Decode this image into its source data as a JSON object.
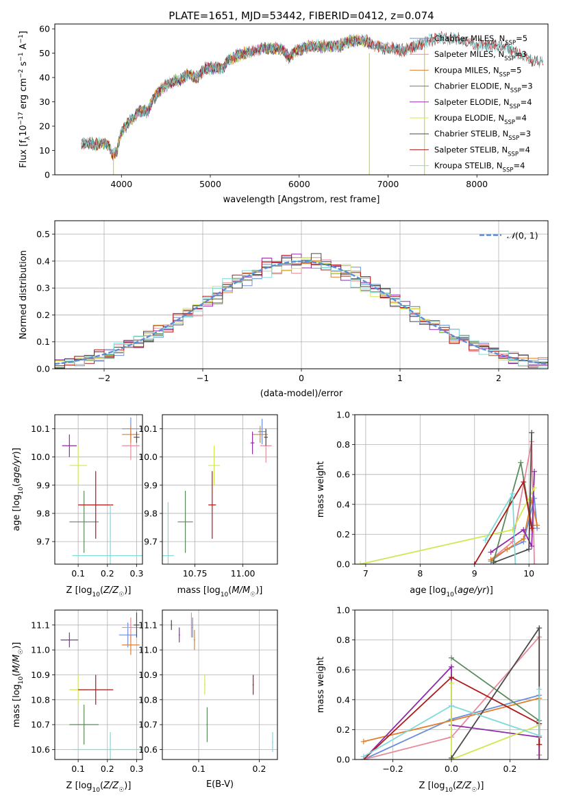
{
  "colors": {
    "Chabrier MILES": "#6a8fd9",
    "Salpeter MILES": "#e88a9a",
    "Kroupa MILES": "#e07e2c",
    "Chabrier ELODIE": "#5a8a5a",
    "Salpeter ELODIE": "#8e2aa8",
    "Kroupa ELODIE": "#cfe850",
    "Chabrier STELIB": "#4a4a4a",
    "Salpeter STELIB": "#b01818",
    "Kroupa STELIB": "#7fdada",
    "gaussian": "#5b8dd6"
  },
  "chart_data": [
    {
      "type": "line",
      "title": "PLATE=1651, MJD=53442, FIBERID=0412, z=0.074",
      "xlabel": "wavelength [Angstrom, rest frame]",
      "ylabel": "Flux [fλ10⁻¹⁷ erg cm⁻² s⁻¹ A⁻¹]",
      "xlim": [
        3250,
        8800
      ],
      "ylim": [
        0,
        62
      ],
      "xticks": [
        4000,
        5000,
        6000,
        7000,
        8000
      ],
      "yticks": [
        0,
        10,
        20,
        30,
        40,
        50,
        60
      ],
      "legend_position": "right",
      "series": [
        {
          "name": "Chabrier MILES, N_SSP=5",
          "label_main": "Chabrier MILES, N",
          "label_sub": "SSP",
          "label_tail": "=5",
          "key": "Chabrier MILES",
          "xmax": 7400
        },
        {
          "name": "Salpeter MILES, N_SSP=3",
          "label_main": "Salpeter MILES, N",
          "label_sub": "SSP",
          "label_tail": "=3",
          "key": "Salpeter MILES",
          "xmax": 7400
        },
        {
          "name": "Kroupa MILES, N_SSP=5",
          "label_main": "Kroupa MILES, N",
          "label_sub": "SSP",
          "label_tail": "=5",
          "key": "Kroupa MILES",
          "xmax": 7400
        },
        {
          "name": "Chabrier ELODIE, N_SSP=3",
          "label_main": "Chabrier ELODIE, N",
          "label_sub": "SSP",
          "label_tail": "=3",
          "key": "Chabrier ELODIE",
          "xmax": 6800
        },
        {
          "name": "Salpeter ELODIE, N_SSP=4",
          "label_main": "Salpeter ELODIE, N",
          "label_sub": "SSP",
          "label_tail": "=4",
          "key": "Salpeter ELODIE",
          "xmax": 6800
        },
        {
          "name": "Kroupa ELODIE, N_SSP=4",
          "label_main": "Kroupa ELODIE, N",
          "label_sub": "SSP",
          "label_tail": "=4",
          "key": "Kroupa ELODIE",
          "xmax": 6800
        },
        {
          "name": "Chabrier STELIB, N_SSP=3",
          "label_main": "Chabrier STELIB, N",
          "label_sub": "SSP",
          "label_tail": "=3",
          "key": "Chabrier STELIB",
          "xmax": 8750
        },
        {
          "name": "Salpeter STELIB, N_SSP=4",
          "label_main": "Salpeter STELIB, N",
          "label_sub": "SSP",
          "label_tail": "=4",
          "key": "Salpeter STELIB",
          "xmax": 8750
        },
        {
          "name": "Kroupa STELIB, N_SSP=4",
          "label_main": "Kroupa STELIB, N",
          "label_sub": "SSP",
          "label_tail": "=4",
          "key": "Kroupa STELIB",
          "xmax": 8750
        }
      ],
      "continuum": [
        [
          3550,
          13
        ],
        [
          3650,
          13
        ],
        [
          3700,
          12
        ],
        [
          3750,
          13
        ],
        [
          3800,
          13
        ],
        [
          3860,
          12
        ],
        [
          3900,
          8
        ],
        [
          3950,
          10
        ],
        [
          4000,
          18
        ],
        [
          4100,
          22
        ],
        [
          4200,
          26
        ],
        [
          4300,
          26
        ],
        [
          4350,
          31
        ],
        [
          4450,
          35
        ],
        [
          4550,
          38
        ],
        [
          4650,
          39
        ],
        [
          4750,
          41
        ],
        [
          4850,
          40
        ],
        [
          4950,
          44
        ],
        [
          5050,
          44
        ],
        [
          5150,
          44
        ],
        [
          5200,
          47
        ],
        [
          5300,
          49
        ],
        [
          5400,
          50
        ],
        [
          5500,
          51
        ],
        [
          5600,
          52
        ],
        [
          5700,
          52
        ],
        [
          5800,
          52
        ],
        [
          5890,
          48
        ],
        [
          5950,
          51
        ],
        [
          6050,
          52
        ],
        [
          6150,
          53
        ],
        [
          6250,
          53
        ],
        [
          6350,
          53
        ],
        [
          6450,
          53
        ],
        [
          6563,
          55
        ],
        [
          6650,
          55
        ],
        [
          6750,
          55
        ],
        [
          6850,
          53
        ],
        [
          6950,
          52
        ],
        [
          7050,
          52
        ],
        [
          7150,
          51
        ],
        [
          7250,
          52
        ],
        [
          7350,
          53
        ],
        [
          7450,
          55
        ],
        [
          7550,
          56
        ],
        [
          7650,
          56
        ],
        [
          7750,
          56
        ],
        [
          7850,
          55
        ],
        [
          7950,
          54
        ],
        [
          8050,
          53
        ],
        [
          8150,
          53
        ],
        [
          8250,
          53
        ],
        [
          8350,
          52
        ],
        [
          8450,
          50
        ],
        [
          8550,
          48
        ],
        [
          8650,
          47
        ],
        [
          8750,
          46
        ]
      ],
      "artifacts": [
        {
          "x": 3910,
          "y0": 0,
          "y1": 11
        },
        {
          "x": 6790,
          "y0": 0,
          "y1": 50
        },
        {
          "x": 7410,
          "y0": 0,
          "y1": 52
        }
      ]
    },
    {
      "type": "bar",
      "xlabel": "(data-model)/error",
      "ylabel": "Normed distribution",
      "xlim": [
        -2.5,
        2.5
      ],
      "ylim": [
        0,
        0.55
      ],
      "xticks": [
        -2,
        -1,
        0,
        1,
        2
      ],
      "xtick_labels": [
        "−2",
        "−1",
        "0",
        "1",
        "2"
      ],
      "yticks": [
        0.0,
        0.1,
        0.2,
        0.3,
        0.4,
        0.5
      ],
      "grid": true,
      "bin_width": 0.1,
      "reference": {
        "name": "𝒩(0, 1)",
        "label_main": "𝒩",
        "label_tail": "(0, 1)",
        "mu": 0,
        "sigma": 1,
        "legend_position": "top-right"
      },
      "series_keys": [
        "Chabrier MILES",
        "Salpeter MILES",
        "Kroupa MILES",
        "Chabrier ELODIE",
        "Salpeter ELODIE",
        "Kroupa ELODIE",
        "Chabrier STELIB",
        "Salpeter STELIB",
        "Kroupa STELIB"
      ],
      "noise_amplitude": 0.045
    },
    {
      "type": "scatter",
      "id": "age_vs_Z",
      "xlabel": "Z [log10(Z/Z☉)]",
      "ylabel": "age [log10(age/yr)]",
      "xlim": [
        0.02,
        0.32
      ],
      "ylim": [
        9.62,
        10.15
      ],
      "xticks": [
        0.1,
        0.2,
        0.3
      ],
      "yticks": [
        9.7,
        9.8,
        9.9,
        10.0,
        10.1
      ],
      "points": [
        {
          "key": "Chabrier MILES",
          "x": 0.28,
          "y": 10.1,
          "xerr": 0.03,
          "yerr": 0.04
        },
        {
          "key": "Salpeter MILES",
          "x": 0.28,
          "y": 10.04,
          "xerr": 0.03,
          "yerr": 0.05
        },
        {
          "key": "Kroupa MILES",
          "x": 0.28,
          "y": 10.08,
          "xerr": 0.03,
          "yerr": 0.03
        },
        {
          "key": "Chabrier ELODIE",
          "x": 0.12,
          "y": 9.77,
          "xerr": 0.05,
          "yerr": 0.11
        },
        {
          "key": "Salpeter ELODIE",
          "x": 0.07,
          "y": 10.04,
          "xerr": 0.025,
          "yerr": 0.04
        },
        {
          "key": "Kroupa ELODIE",
          "x": 0.1,
          "y": 9.97,
          "xerr": 0.03,
          "yerr": 0.07
        },
        {
          "key": "Chabrier STELIB",
          "x": 0.3,
          "y": 10.07,
          "xerr": 0.01,
          "yerr": 0.02
        },
        {
          "key": "Salpeter STELIB",
          "x": 0.16,
          "y": 9.83,
          "xerr": 0.06,
          "yerr": 0.12
        },
        {
          "key": "Kroupa STELIB",
          "x": 0.21,
          "y": 9.65,
          "xerr": 0.13,
          "yerr": 0.18
        }
      ]
    },
    {
      "type": "scatter",
      "id": "age_vs_mass",
      "xlabel": "mass [log10(M/M☉)]",
      "ylabel": "",
      "xlim": [
        10.58,
        11.18
      ],
      "ylim": [
        9.62,
        10.15
      ],
      "xticks": [
        10.75,
        11.0
      ],
      "yticks": [
        9.7,
        9.8,
        9.9,
        10.0,
        10.1
      ],
      "points": [
        {
          "key": "Chabrier MILES",
          "x": 11.1,
          "y": 10.09,
          "xerr": 0.02,
          "yerr": 0.045
        },
        {
          "key": "Salpeter MILES",
          "x": 11.12,
          "y": 10.04,
          "xerr": 0.03,
          "yerr": 0.06
        },
        {
          "key": "Kroupa MILES",
          "x": 11.09,
          "y": 10.08,
          "xerr": 0.04,
          "yerr": 0.03
        },
        {
          "key": "Chabrier ELODIE",
          "x": 10.7,
          "y": 9.77,
          "xerr": 0.04,
          "yerr": 0.11
        },
        {
          "key": "Salpeter ELODIE",
          "x": 11.05,
          "y": 10.05,
          "xerr": 0.01,
          "yerr": 0.04
        },
        {
          "key": "Kroupa ELODIE",
          "x": 10.85,
          "y": 9.97,
          "xerr": 0.03,
          "yerr": 0.07
        },
        {
          "key": "Chabrier STELIB",
          "x": 11.12,
          "y": 10.07,
          "xerr": 0.01,
          "yerr": 0.03
        },
        {
          "key": "Salpeter STELIB",
          "x": 10.84,
          "y": 9.83,
          "xerr": 0.02,
          "yerr": 0.12
        },
        {
          "key": "Kroupa STELIB",
          "x": 10.61,
          "y": 9.65,
          "xerr": 0.03,
          "yerr": 0.19
        }
      ]
    },
    {
      "type": "line",
      "id": "mass_weight_vs_age",
      "xlabel": "age [log10(age/yr)]",
      "ylabel": "mass weight",
      "xlim": [
        6.8,
        10.35
      ],
      "ylim": [
        0,
        1.0
      ],
      "xticks": [
        7,
        8,
        9,
        10
      ],
      "yticks": [
        0.0,
        0.2,
        0.4,
        0.6,
        0.8,
        1.0
      ],
      "yticklabels": [
        "0.0",
        "0.2",
        "0.4",
        "0.6",
        "0.8",
        "1.0"
      ],
      "grid": true,
      "series": [
        {
          "key": "Chabrier MILES",
          "x": [
            9.3,
            9.6,
            9.9,
            10.1,
            10.15
          ],
          "y": [
            0.02,
            0.1,
            0.15,
            0.44,
            0.24
          ]
        },
        {
          "key": "Salpeter MILES",
          "x": [
            9.3,
            9.7,
            10.05,
            10.1
          ],
          "y": [
            0.03,
            0.15,
            0.82,
            0.0
          ]
        },
        {
          "key": "Kroupa MILES",
          "x": [
            9.3,
            9.6,
            9.9,
            10.05,
            10.15
          ],
          "y": [
            0.03,
            0.1,
            0.17,
            0.43,
            0.26
          ]
        },
        {
          "key": "Chabrier ELODIE",
          "x": [
            9.35,
            9.85,
            10.05
          ],
          "y": [
            0.02,
            0.68,
            0.26
          ]
        },
        {
          "key": "Salpeter ELODIE",
          "x": [
            9.3,
            9.9,
            10.05,
            10.1
          ],
          "y": [
            0.08,
            0.23,
            0.12,
            0.62
          ]
        },
        {
          "key": "Kroupa ELODIE",
          "x": [
            6.9,
            9.7,
            10.1
          ],
          "y": [
            0.0,
            0.23,
            0.51
          ]
        },
        {
          "key": "Chabrier STELIB",
          "x": [
            9.35,
            10.0,
            10.05
          ],
          "y": [
            0.01,
            0.1,
            0.88
          ]
        },
        {
          "key": "Salpeter STELIB",
          "x": [
            9.0,
            9.9,
            10.05
          ],
          "y": [
            0.0,
            0.55,
            0.24
          ]
        },
        {
          "key": "Kroupa STELIB",
          "x": [
            9.2,
            9.7,
            9.75
          ],
          "y": [
            0.16,
            0.47,
            0.0
          ]
        }
      ]
    },
    {
      "type": "scatter",
      "id": "mass_vs_Z",
      "xlabel": "Z [log10(Z/Z☉)]",
      "ylabel": "mass [log10(M/M☉)]",
      "xlim": [
        0.02,
        0.32
      ],
      "ylim": [
        10.56,
        11.16
      ],
      "xticks": [
        0.1,
        0.2,
        0.3
      ],
      "yticks": [
        10.6,
        10.7,
        10.8,
        10.9,
        11.0,
        11.1
      ],
      "points": [
        {
          "key": "Chabrier MILES",
          "x": 0.27,
          "y": 11.06,
          "xerr": 0.03,
          "yerr": 0.05
        },
        {
          "key": "Salpeter MILES",
          "x": 0.28,
          "y": 11.09,
          "xerr": 0.03,
          "yerr": 0.04
        },
        {
          "key": "Kroupa MILES",
          "x": 0.28,
          "y": 11.02,
          "xerr": 0.03,
          "yerr": 0.04
        },
        {
          "key": "Chabrier ELODIE",
          "x": 0.12,
          "y": 10.7,
          "xerr": 0.05,
          "yerr": 0.08
        },
        {
          "key": "Salpeter ELODIE",
          "x": 0.07,
          "y": 11.04,
          "xerr": 0.03,
          "yerr": 0.03
        },
        {
          "key": "Kroupa ELODIE",
          "x": 0.1,
          "y": 10.84,
          "xerr": 0.03,
          "yerr": 0.06
        },
        {
          "key": "Chabrier STELIB",
          "x": 0.3,
          "y": 11.1,
          "xerr": 0.01,
          "yerr": 0.05
        },
        {
          "key": "Salpeter STELIB",
          "x": 0.16,
          "y": 10.84,
          "xerr": 0.06,
          "yerr": 0.06
        },
        {
          "key": "Kroupa STELIB",
          "x": 0.21,
          "y": 10.6,
          "xerr": 0.13,
          "yerr": 0.07
        }
      ]
    },
    {
      "type": "scatter",
      "id": "mass_vs_ebv",
      "xlabel": "E(B-V)",
      "ylabel": "",
      "xlim": [
        0.04,
        0.23
      ],
      "ylim": [
        10.56,
        11.16
      ],
      "xticks": [
        0.1,
        0.2
      ],
      "yticks": [
        10.6,
        10.7,
        10.8,
        10.9,
        11.0,
        11.1
      ],
      "points": [
        {
          "key": "Chabrier MILES",
          "x": 0.09,
          "y": 11.09,
          "xerr": 0.001,
          "yerr": 0.04
        },
        {
          "key": "Salpeter MILES",
          "x": 0.088,
          "y": 11.1,
          "xerr": 0.001,
          "yerr": 0.05
        },
        {
          "key": "Kroupa MILES",
          "x": 0.093,
          "y": 11.04,
          "xerr": 0.001,
          "yerr": 0.04
        },
        {
          "key": "Chabrier ELODIE",
          "x": 0.114,
          "y": 10.7,
          "xerr": 0.001,
          "yerr": 0.07
        },
        {
          "key": "Salpeter ELODIE",
          "x": 0.068,
          "y": 11.06,
          "xerr": 0.001,
          "yerr": 0.03
        },
        {
          "key": "Kroupa ELODIE",
          "x": 0.11,
          "y": 10.86,
          "xerr": 0.001,
          "yerr": 0.04
        },
        {
          "key": "Chabrier STELIB",
          "x": 0.055,
          "y": 11.1,
          "xerr": 0.001,
          "yerr": 0.02
        },
        {
          "key": "Salpeter STELIB",
          "x": 0.19,
          "y": 10.86,
          "xerr": 0.001,
          "yerr": 0.04
        },
        {
          "key": "Kroupa STELIB",
          "x": 0.222,
          "y": 10.63,
          "xerr": 0.001,
          "yerr": 0.04
        }
      ]
    },
    {
      "type": "line",
      "id": "mass_weight_vs_Z",
      "xlabel": "Z [log10(Z/Z☉)]",
      "ylabel": "mass weight",
      "xlim": [
        -0.33,
        0.33
      ],
      "ylim": [
        0,
        1.0
      ],
      "xticks": [
        -0.2,
        0.0,
        0.2
      ],
      "xtick_labels": [
        "−0.2",
        "0.0",
        "0.2"
      ],
      "yticks": [
        0.0,
        0.2,
        0.4,
        0.6,
        0.8,
        1.0
      ],
      "yticklabels": [
        "0.0",
        "0.2",
        "0.4",
        "0.6",
        "0.8",
        "1.0"
      ],
      "grid": true,
      "series": [
        {
          "key": "Chabrier MILES",
          "x": [
            -0.3,
            0.0,
            0.3,
            0.3
          ],
          "y": [
            0.0,
            0.27,
            0.43,
            0.24
          ]
        },
        {
          "key": "Salpeter MILES",
          "x": [
            -0.3,
            0.0,
            0.3,
            0.3
          ],
          "y": [
            0.0,
            0.15,
            0.82,
            0.0
          ]
        },
        {
          "key": "Kroupa MILES",
          "x": [
            -0.3,
            0.0,
            0.3,
            0.3
          ],
          "y": [
            0.12,
            0.26,
            0.41,
            0.03
          ]
        },
        {
          "key": "Chabrier ELODIE",
          "x": [
            0.0,
            0.3,
            0.3
          ],
          "y": [
            0.68,
            0.26,
            0.0
          ]
        },
        {
          "key": "Salpeter ELODIE",
          "x": [
            -0.3,
            0.0,
            0.0,
            0.3,
            0.3
          ],
          "y": [
            0.0,
            0.62,
            0.23,
            0.15,
            0.0
          ]
        },
        {
          "key": "Kroupa ELODIE",
          "x": [
            0.0,
            0.0,
            0.3
          ],
          "y": [
            0.51,
            0.0,
            0.23
          ]
        },
        {
          "key": "Chabrier STELIB",
          "x": [
            0.0,
            0.3,
            0.3
          ],
          "y": [
            0.01,
            0.88,
            0.1
          ]
        },
        {
          "key": "Salpeter STELIB",
          "x": [
            -0.3,
            0.0,
            0.3,
            0.3
          ],
          "y": [
            0.0,
            0.55,
            0.24,
            0.1
          ]
        },
        {
          "key": "Kroupa STELIB",
          "x": [
            -0.3,
            0.0,
            0.3,
            0.3
          ],
          "y": [
            0.02,
            0.36,
            0.16,
            0.47
          ]
        }
      ]
    }
  ]
}
